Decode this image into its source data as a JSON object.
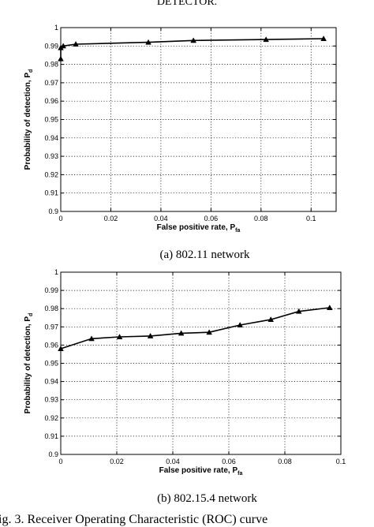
{
  "header_fragment": "DETECTOR.",
  "figure_caption": "ig. 3.   Receiver Operating Characteristic (ROC) curve",
  "chart_data": [
    {
      "type": "line",
      "caption": "(a) 802.11 network",
      "xlabel_main": "False positive rate, P",
      "xlabel_sub": "fa",
      "ylabel_main": "Probability of detection, P",
      "ylabel_sub": "d",
      "xlim": [
        0,
        0.11
      ],
      "ylim": [
        0.9,
        1.0
      ],
      "xticks": [
        0,
        0.02,
        0.04,
        0.06,
        0.08,
        0.1
      ],
      "xtick_labels": [
        "0",
        "0.02",
        "0.04",
        "0.06",
        "0.08",
        "0.1"
      ],
      "yticks": [
        0.9,
        0.91,
        0.92,
        0.93,
        0.94,
        0.95,
        0.96,
        0.97,
        0.98,
        0.99,
        1.0
      ],
      "ytick_labels": [
        "0.9",
        "0.91",
        "0.92",
        "0.93",
        "0.94",
        "0.95",
        "0.96",
        "0.97",
        "0.98",
        "0.99",
        "1"
      ],
      "grid": true,
      "marker": "triangle",
      "x": [
        0,
        0,
        0.001,
        0.006,
        0.035,
        0.053,
        0.082,
        0.105
      ],
      "y": [
        0.983,
        0.989,
        0.99,
        0.991,
        0.992,
        0.993,
        0.9935,
        0.994
      ]
    },
    {
      "type": "line",
      "caption": "(b) 802.15.4 network",
      "xlabel_main": "False positive rate, P",
      "xlabel_sub": "fa",
      "ylabel_main": "Probability of detection, P",
      "ylabel_sub": "d",
      "xlim": [
        0,
        0.1
      ],
      "ylim": [
        0.9,
        1.0
      ],
      "xticks": [
        0,
        0.02,
        0.04,
        0.06,
        0.08,
        0.1
      ],
      "xtick_labels": [
        "0",
        "0.02",
        "0.04",
        "0.06",
        "0.08",
        "0.1"
      ],
      "yticks": [
        0.9,
        0.91,
        0.92,
        0.93,
        0.94,
        0.95,
        0.96,
        0.97,
        0.98,
        0.99,
        1.0
      ],
      "ytick_labels": [
        "0.9",
        "0.91",
        "0.92",
        "0.93",
        "0.94",
        "0.95",
        "0.96",
        "0.97",
        "0.98",
        "0.99",
        "1"
      ],
      "grid": true,
      "marker": "triangle",
      "x": [
        0,
        0.011,
        0.021,
        0.032,
        0.043,
        0.053,
        0.064,
        0.075,
        0.085,
        0.096
      ],
      "y": [
        0.958,
        0.9635,
        0.9645,
        0.965,
        0.9665,
        0.967,
        0.971,
        0.974,
        0.9785,
        0.9805
      ]
    }
  ]
}
